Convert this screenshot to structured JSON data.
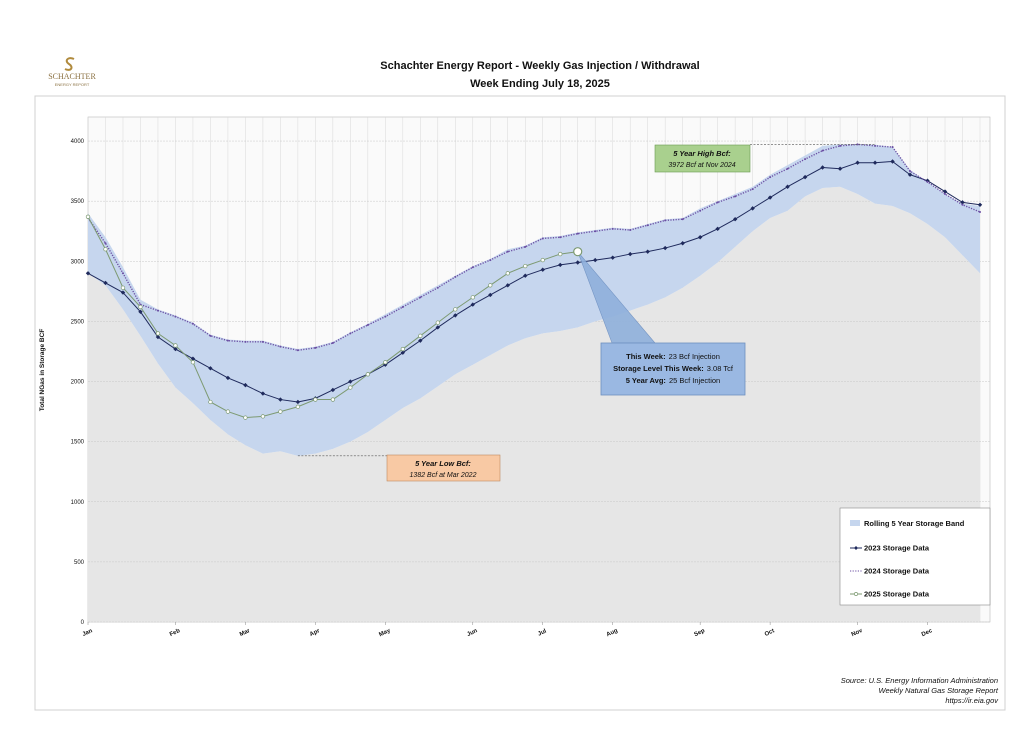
{
  "logo": {
    "name": "SCHACHTER",
    "tagline": "ENERGY REPORT"
  },
  "chart_data": {
    "type": "line",
    "title": "Schachter Energy Report - Weekly Gas Injection / Withdrawal",
    "subtitle": "Week Ending July 18, 2025",
    "y_label": "Total NGas in Storage BCF",
    "categories": [
      "Jan",
      null,
      null,
      null,
      null,
      "Feb",
      null,
      null,
      null,
      "Mar",
      null,
      null,
      null,
      "Apr",
      null,
      null,
      null,
      "May",
      null,
      null,
      null,
      null,
      "Jun",
      null,
      null,
      null,
      "Jul",
      null,
      null,
      null,
      "Aug",
      null,
      null,
      null,
      null,
      "Sep",
      null,
      null,
      null,
      "Oct",
      null,
      null,
      null,
      null,
      "Nov",
      null,
      null,
      null,
      "Dec",
      null,
      null,
      null
    ],
    "ylim": [
      0,
      4200
    ],
    "yticks": [
      0,
      500,
      1000,
      1500,
      2000,
      2500,
      3000,
      3500,
      4000
    ],
    "grid": true,
    "band": {
      "name": "Rolling 5 Year Storage Band",
      "color": "#c6d6ee",
      "high": [
        3400,
        3200,
        2950,
        2680,
        2600,
        2550,
        2490,
        2390,
        2350,
        2340,
        2340,
        2300,
        2270,
        2290,
        2330,
        2410,
        2480,
        2560,
        2640,
        2720,
        2800,
        2880,
        2960,
        3020,
        3100,
        3130,
        3200,
        3210,
        3240,
        3260,
        3280,
        3270,
        3310,
        3350,
        3360,
        3440,
        3500,
        3560,
        3620,
        3720,
        3800,
        3880,
        3960,
        3972,
        3972,
        3970,
        3950,
        3760,
        3660,
        3560,
        3480,
        3460
      ],
      "low": [
        2900,
        2800,
        2600,
        2380,
        2150,
        1950,
        1820,
        1680,
        1560,
        1470,
        1400,
        1420,
        1382,
        1400,
        1440,
        1500,
        1580,
        1680,
        1780,
        1860,
        1960,
        2060,
        2140,
        2220,
        2300,
        2360,
        2400,
        2420,
        2450,
        2500,
        2540,
        2590,
        2640,
        2700,
        2780,
        2880,
        2990,
        3120,
        3250,
        3360,
        3420,
        3540,
        3610,
        3620,
        3560,
        3480,
        3460,
        3400,
        3310,
        3200,
        3050,
        2900
      ]
    },
    "series": [
      {
        "name": "2023 Storage Data",
        "color": "#1f2a5c",
        "marker": "diamond",
        "dash": "solid",
        "values": [
          2900,
          2820,
          2740,
          2580,
          2370,
          2270,
          2190,
          2110,
          2030,
          1970,
          1900,
          1850,
          1830,
          1860,
          1930,
          2000,
          2060,
          2140,
          2240,
          2340,
          2450,
          2550,
          2640,
          2720,
          2800,
          2880,
          2930,
          2970,
          2990,
          3010,
          3030,
          3060,
          3080,
          3110,
          3150,
          3200,
          3270,
          3350,
          3440,
          3530,
          3620,
          3700,
          3780,
          3770,
          3820,
          3820,
          3830,
          3720,
          3670,
          3580,
          3490,
          3470
        ]
      },
      {
        "name": "2024 Storage Data",
        "color": "#6b4fa3",
        "marker": "dot",
        "dash": "dotted",
        "values": [
          3360,
          3150,
          2900,
          2640,
          2590,
          2540,
          2480,
          2380,
          2340,
          2330,
          2330,
          2290,
          2260,
          2280,
          2320,
          2400,
          2470,
          2540,
          2620,
          2700,
          2780,
          2870,
          2950,
          3010,
          3080,
          3120,
          3190,
          3200,
          3230,
          3250,
          3270,
          3260,
          3300,
          3340,
          3350,
          3420,
          3490,
          3540,
          3600,
          3700,
          3770,
          3850,
          3920,
          3960,
          3972,
          3960,
          3950,
          3750,
          3660,
          3560,
          3470,
          3410
        ]
      },
      {
        "name": "2025 Storage Data",
        "color": "#7d9a72",
        "marker": "circle",
        "dash": "solid",
        "values": [
          3370,
          3100,
          2780,
          2620,
          2400,
          2300,
          2160,
          1830,
          1750,
          1700,
          1710,
          1750,
          1790,
          1850,
          1850,
          1950,
          2060,
          2160,
          2270,
          2380,
          2490,
          2600,
          2700,
          2800,
          2900,
          2960,
          3010,
          3060,
          3080,
          null,
          null,
          null,
          null,
          null,
          null,
          null,
          null,
          null,
          null,
          null,
          null,
          null,
          null,
          null,
          null,
          null,
          null,
          null,
          null,
          null,
          null,
          null
        ]
      }
    ],
    "annotations": {
      "high": {
        "title": "5 Year High Bcf:",
        "text": "3972 Bcf at Nov 2024"
      },
      "low": {
        "title": "5 Year Low Bcf:",
        "text": "1382 Bcf at Mar 2022"
      }
    },
    "this_week": [
      {
        "label": "This Week:",
        "text": "23 Bcf Injection"
      },
      {
        "label": "Storage Level This Week:",
        "text": "3.08 Tcf"
      },
      {
        "label": "5 Year Avg:",
        "text": "25 Bcf Injection"
      }
    ]
  },
  "source": [
    "Source: U.S. Energy Information Administration",
    "Weekly Natural Gas Storage Report",
    "https://ir.eia.gov"
  ]
}
